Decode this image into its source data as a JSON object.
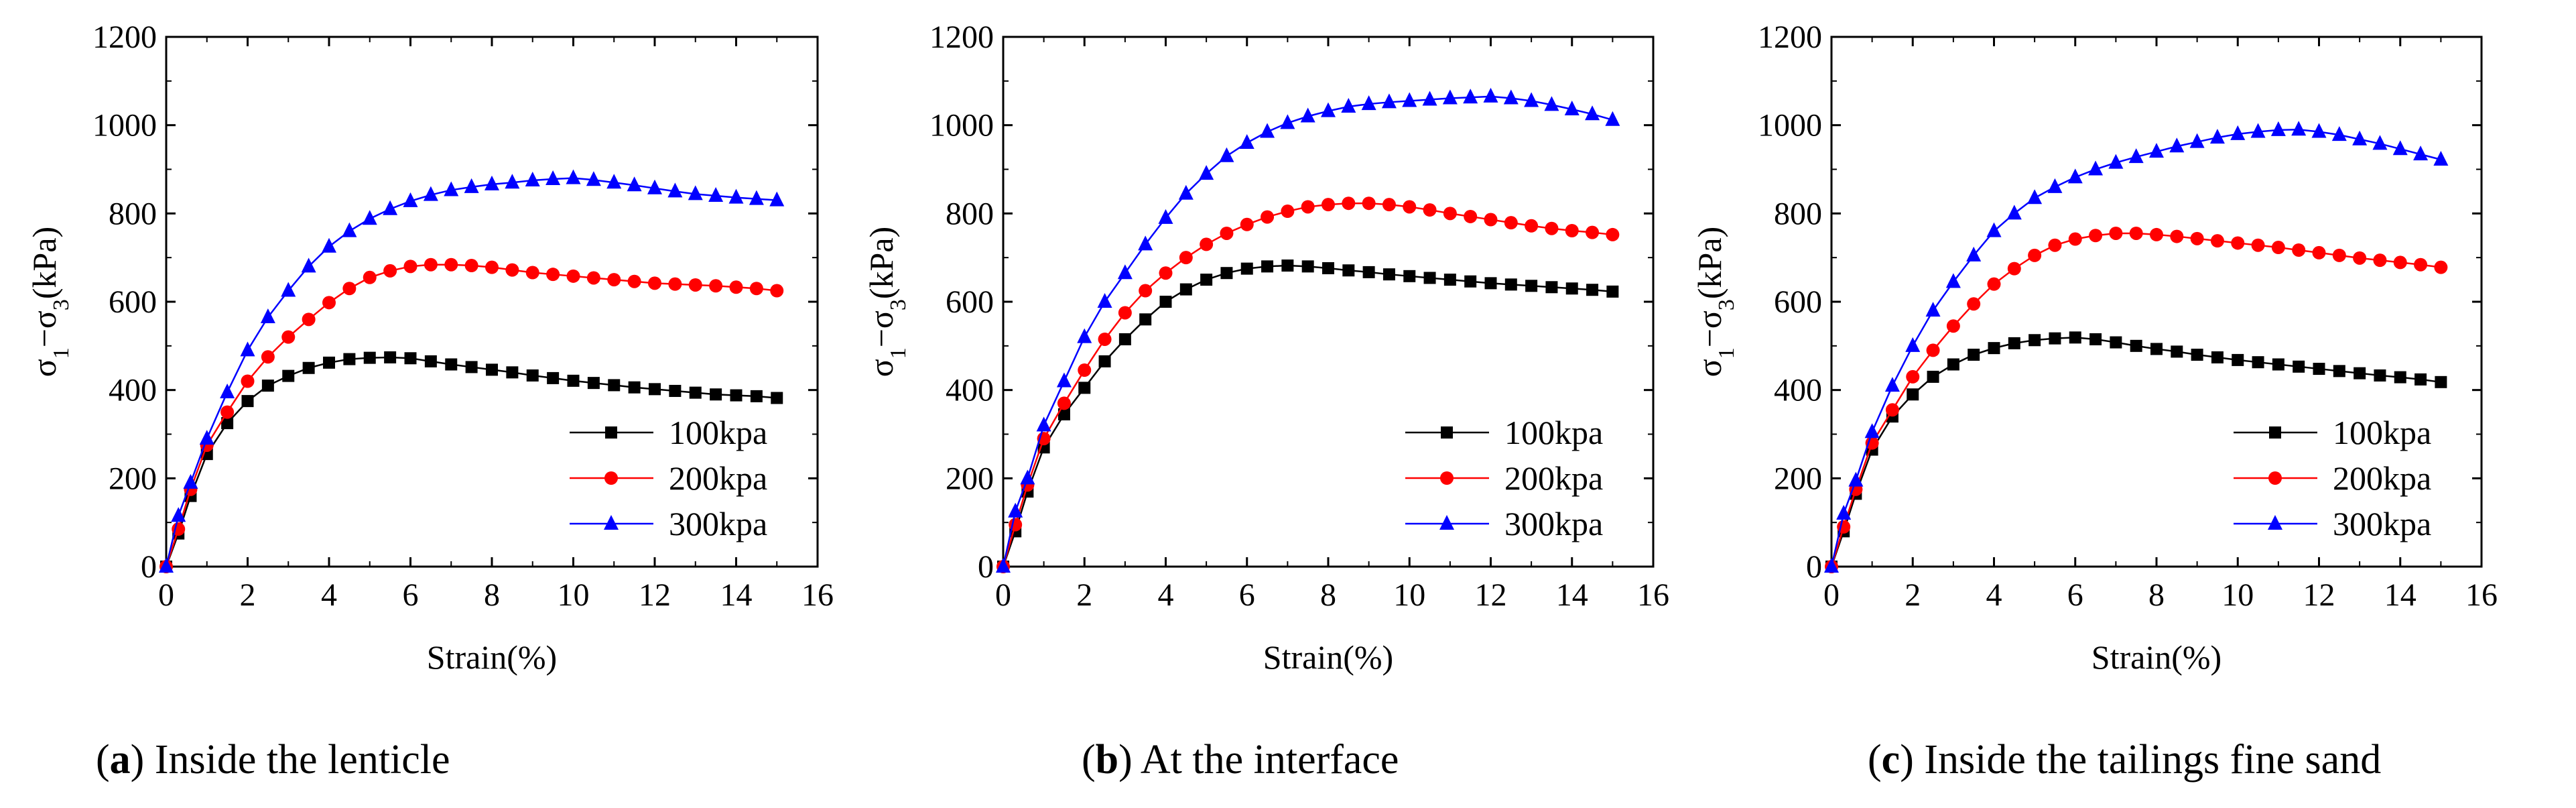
{
  "figure": {
    "captions": [
      {
        "letter": "a",
        "text": "Inside the lenticle"
      },
      {
        "letter": "b",
        "text": "At the interface"
      },
      {
        "letter": "c",
        "text": "Inside the tailings fine sand"
      }
    ]
  },
  "chart_data": [
    {
      "type": "line",
      "xlabel": "Strain(%)",
      "ylabel": "σ1−σ3(kPa)",
      "xlim": [
        0,
        16
      ],
      "ylim": [
        0,
        1200
      ],
      "xticks": [
        0,
        2,
        4,
        6,
        8,
        10,
        12,
        14,
        16
      ],
      "yticks": [
        0,
        200,
        400,
        600,
        800,
        1000,
        1200
      ],
      "legend": "bottom-right",
      "x": [
        0,
        0.3,
        0.6,
        1,
        1.5,
        2,
        2.5,
        3,
        3.5,
        4,
        4.5,
        5,
        5.5,
        6,
        6.5,
        7,
        7.5,
        8,
        8.5,
        9,
        9.5,
        10,
        10.5,
        11,
        11.5,
        12,
        12.5,
        13,
        13.5,
        14,
        14.5,
        15
      ],
      "series": [
        {
          "name": "100kpa",
          "color": "#000000",
          "marker": "square",
          "values": [
            0,
            75,
            160,
            255,
            325,
            375,
            410,
            432,
            450,
            462,
            470,
            473,
            474,
            472,
            465,
            458,
            452,
            446,
            440,
            433,
            427,
            421,
            416,
            411,
            406,
            402,
            398,
            394,
            390,
            388,
            386,
            382
          ]
        },
        {
          "name": "200kpa",
          "color": "#ff0000",
          "marker": "circle",
          "values": [
            0,
            85,
            175,
            275,
            350,
            420,
            475,
            520,
            560,
            598,
            630,
            655,
            670,
            680,
            684,
            684,
            682,
            678,
            672,
            666,
            662,
            658,
            654,
            650,
            646,
            642,
            640,
            638,
            636,
            633,
            630,
            625
          ]
        },
        {
          "name": "300kpa",
          "color": "#0000ff",
          "marker": "triangle",
          "values": [
            0,
            115,
            190,
            290,
            395,
            490,
            565,
            625,
            680,
            725,
            760,
            788,
            810,
            828,
            842,
            853,
            860,
            866,
            870,
            875,
            878,
            880,
            876,
            870,
            864,
            857,
            850,
            844,
            840,
            836,
            833,
            830
          ]
        }
      ]
    },
    {
      "type": "line",
      "xlabel": "Strain(%)",
      "ylabel": "σ1−σ3(kPa)",
      "xlim": [
        0,
        16
      ],
      "ylim": [
        0,
        1200
      ],
      "xticks": [
        0,
        2,
        4,
        6,
        8,
        10,
        12,
        14,
        16
      ],
      "yticks": [
        0,
        200,
        400,
        600,
        800,
        1000,
        1200
      ],
      "legend": "bottom-right",
      "x": [
        0,
        0.3,
        0.6,
        1,
        1.5,
        2,
        2.5,
        3,
        3.5,
        4,
        4.5,
        5,
        5.5,
        6,
        6.5,
        7,
        7.5,
        8,
        8.5,
        9,
        9.5,
        10,
        10.5,
        11,
        11.5,
        12,
        12.5,
        13,
        13.5,
        14,
        14.5,
        15
      ],
      "series": [
        {
          "name": "100kpa",
          "color": "#000000",
          "marker": "square",
          "values": [
            0,
            80,
            170,
            270,
            345,
            405,
            465,
            515,
            560,
            600,
            628,
            650,
            665,
            675,
            680,
            682,
            680,
            676,
            671,
            667,
            662,
            658,
            654,
            650,
            646,
            642,
            639,
            636,
            633,
            630,
            627,
            623
          ]
        },
        {
          "name": "200kpa",
          "color": "#ff0000",
          "marker": "circle",
          "values": [
            0,
            95,
            185,
            290,
            370,
            445,
            515,
            575,
            625,
            665,
            700,
            730,
            755,
            775,
            792,
            805,
            815,
            820,
            823,
            823,
            820,
            815,
            808,
            800,
            793,
            786,
            779,
            772,
            766,
            761,
            757,
            752
          ]
        },
        {
          "name": "300kpa",
          "color": "#0000ff",
          "marker": "triangle",
          "values": [
            0,
            125,
            200,
            320,
            420,
            520,
            600,
            665,
            730,
            790,
            845,
            890,
            930,
            960,
            985,
            1005,
            1020,
            1032,
            1042,
            1048,
            1052,
            1055,
            1058,
            1061,
            1063,
            1065,
            1061,
            1055,
            1046,
            1036,
            1025,
            1012
          ]
        }
      ]
    },
    {
      "type": "line",
      "xlabel": "Strain(%)",
      "ylabel": "σ1−σ3(kPa)",
      "xlim": [
        0,
        16
      ],
      "ylim": [
        0,
        1200
      ],
      "xticks": [
        0,
        2,
        4,
        6,
        8,
        10,
        12,
        14,
        16
      ],
      "yticks": [
        0,
        200,
        400,
        600,
        800,
        1000,
        1200
      ],
      "legend": "bottom-right",
      "x": [
        0,
        0.3,
        0.6,
        1,
        1.5,
        2,
        2.5,
        3,
        3.5,
        4,
        4.5,
        5,
        5.5,
        6,
        6.5,
        7,
        7.5,
        8,
        8.5,
        9,
        9.5,
        10,
        10.5,
        11,
        11.5,
        12,
        12.5,
        13,
        13.5,
        14,
        14.5,
        15
      ],
      "series": [
        {
          "name": "100kpa",
          "color": "#000000",
          "marker": "square",
          "values": [
            0,
            80,
            165,
            265,
            340,
            390,
            430,
            458,
            480,
            495,
            506,
            513,
            517,
            519,
            515,
            508,
            500,
            493,
            487,
            480,
            474,
            468,
            463,
            458,
            453,
            448,
            443,
            438,
            433,
            429,
            424,
            418
          ]
        },
        {
          "name": "200kpa",
          "color": "#ff0000",
          "marker": "circle",
          "values": [
            0,
            90,
            175,
            280,
            355,
            430,
            490,
            545,
            595,
            640,
            675,
            705,
            728,
            742,
            750,
            755,
            755,
            752,
            748,
            743,
            738,
            733,
            728,
            723,
            717,
            711,
            705,
            699,
            694,
            689,
            684,
            678
          ]
        },
        {
          "name": "300kpa",
          "color": "#0000ff",
          "marker": "triangle",
          "values": [
            0,
            120,
            195,
            305,
            410,
            500,
            580,
            645,
            705,
            760,
            800,
            835,
            860,
            882,
            900,
            915,
            928,
            940,
            952,
            962,
            972,
            980,
            985,
            989,
            990,
            985,
            978,
            968,
            958,
            946,
            934,
            922
          ]
        }
      ]
    }
  ]
}
